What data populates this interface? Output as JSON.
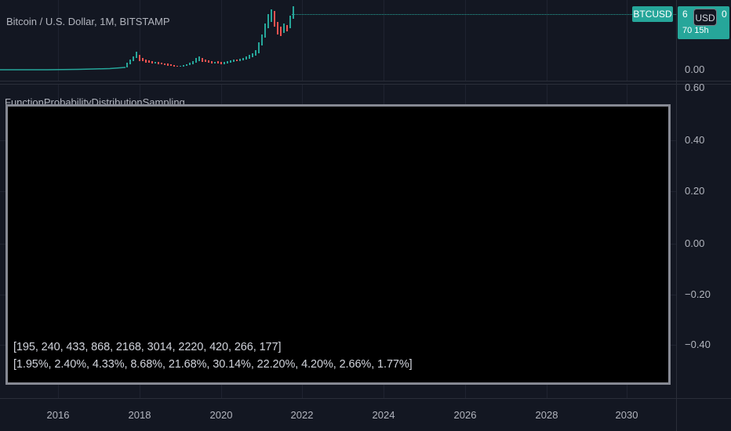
{
  "header": {
    "symbol_title": "Bitcoin / U.S. Dollar, 1M, BITSTAMP",
    "indicator_title": "FunctionProbabilityDistributionSampling"
  },
  "badges": {
    "symbol": "BTCUSD",
    "price_partial": "6",
    "price_tail": "0",
    "timer_partial": "70 15h",
    "currency_button": "USD"
  },
  "price_axis": {
    "main_pane_ticks": [
      "0.00"
    ],
    "lower_pane_ticks": [
      "0.60",
      "0.40",
      "0.20",
      "0.00",
      "−0.20",
      "−0.40"
    ]
  },
  "time_axis": {
    "ticks": [
      "2016",
      "2018",
      "2020",
      "2022",
      "2024",
      "2026",
      "2028",
      "2030"
    ]
  },
  "output": {
    "counts": "[195, 240, 433, 868, 2168, 3014, 2220, 420, 266, 177]",
    "percentages": "[1.95%, 2.40%, 4.33%, 8.68%, 21.68%, 30.14%, 22.20%, 4.20%, 2.66%, 1.77%]"
  },
  "colors": {
    "background": "#131722",
    "up": "#26a69a",
    "down": "#ef5350",
    "table_background": "#000000",
    "table_border": "#868993"
  }
}
